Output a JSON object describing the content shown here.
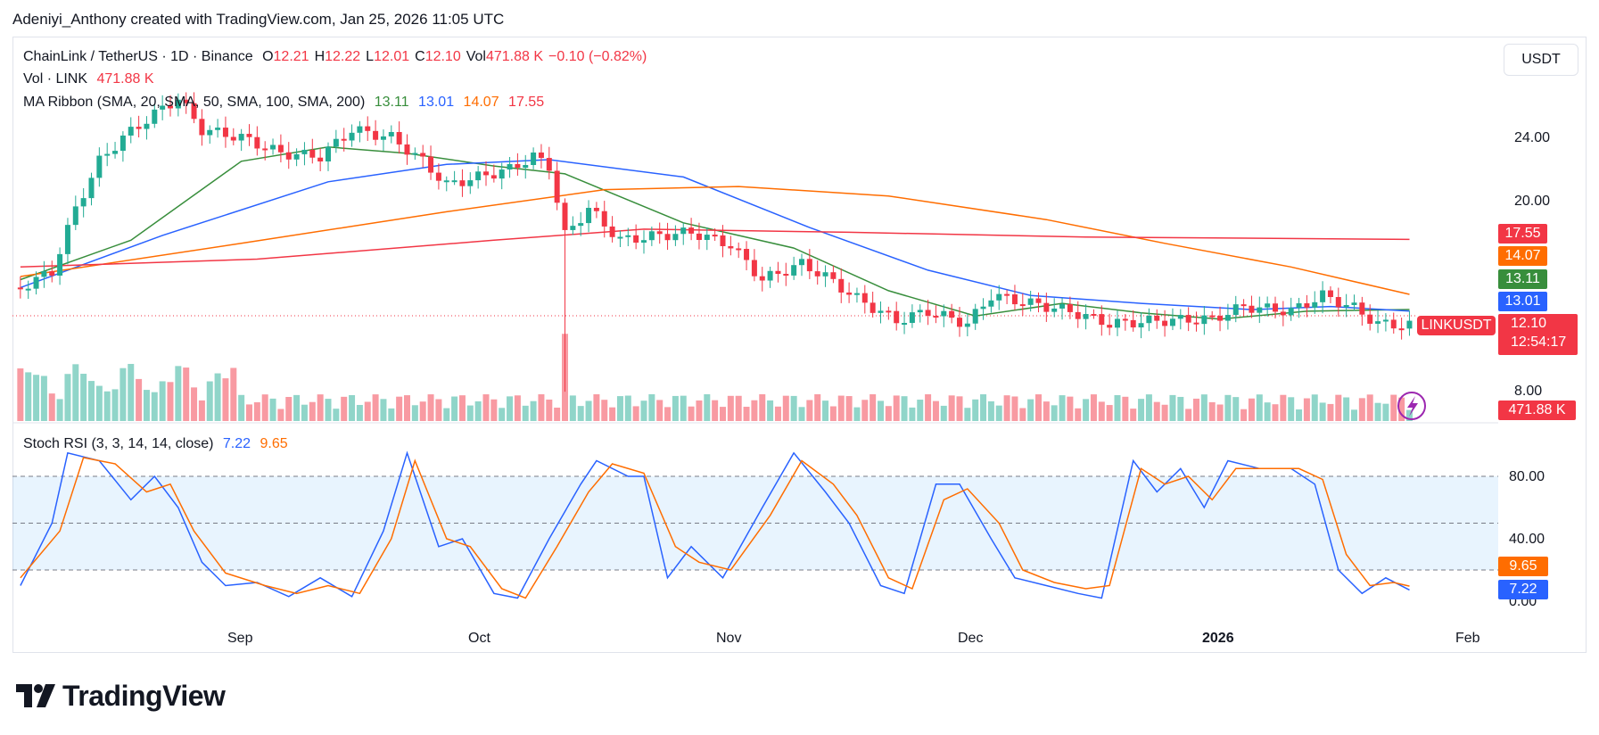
{
  "header": {
    "attribution": "Adeniyi_Anthony created with TradingView.com, Jan 25, 2026 11:05 UTC"
  },
  "legend": {
    "symbol": "ChainLink / TetherUS · 1D · Binance",
    "o_label": "O",
    "o": "12.21",
    "h_label": "H",
    "h": "12.22",
    "l_label": "L",
    "l": "12.01",
    "c_label": "C",
    "c": "12.10",
    "vol_label": "Vol",
    "vol": "471.88 K",
    "change": "−0.10 (−0.82%)",
    "vol_line_label": "Vol · LINK",
    "vol_line_value": "471.88 K",
    "ma_label": "MA Ribbon (SMA, 20, SMA, 50, SMA, 100, SMA, 200)",
    "ma20": "13.11",
    "ma50": "13.01",
    "ma100": "14.07",
    "ma200": "17.55",
    "stoch_label": "Stoch RSI (3, 3, 14, 14, close)",
    "stoch_k": "7.22",
    "stoch_d": "9.65"
  },
  "currency_button": "USDT",
  "price_axis": {
    "ticks": [
      "24.00",
      "20.00",
      "8.00"
    ]
  },
  "rsi_axis": {
    "ticks": [
      "80.00",
      "40.00",
      "0.00"
    ]
  },
  "time_axis": {
    "ticks": [
      "Sep",
      "Oct",
      "Nov",
      "Dec",
      "2026",
      "Feb"
    ]
  },
  "price_labels": {
    "ma200": "17.55",
    "ma100": "14.07",
    "ma20": "13.11",
    "ma50": "13.01",
    "symbol": "LINKUSDT",
    "price": "12.10",
    "countdown": "12:54:17",
    "volume": "471.88 K"
  },
  "rsi_labels": {
    "d": "9.65",
    "k": "7.22"
  },
  "brand": {
    "name": "TradingView"
  },
  "colors": {
    "up": "#22ab94",
    "down": "#f23645",
    "ma20": "#388e3c",
    "ma50": "#2962ff",
    "ma100": "#ff6d00",
    "ma200": "#f23645",
    "stoch_k": "#2962ff",
    "stoch_d": "#ff6d00"
  },
  "chart_data": [
    {
      "type": "candlestick",
      "title": "ChainLink / TetherUS · 1D · Binance",
      "x_ticks": [
        "Sep",
        "Oct",
        "Nov",
        "Dec",
        "2026",
        "Feb"
      ],
      "y_ticks": [
        24.0,
        20.0,
        8.0
      ],
      "close_path": [
        {
          "x": "Aug 2",
          "y": 14.5
        },
        {
          "x": "Aug 6",
          "y": 15.5
        },
        {
          "x": "Aug 9",
          "y": 19.5
        },
        {
          "x": "Aug 12",
          "y": 22.5
        },
        {
          "x": "Aug 15",
          "y": 24.0
        },
        {
          "x": "Aug 19",
          "y": 25.5
        },
        {
          "x": "Aug 22",
          "y": 26.5
        },
        {
          "x": "Aug 25",
          "y": 24.5
        },
        {
          "x": "Aug 30",
          "y": 24.0
        },
        {
          "x": "Sep 4",
          "y": 23.0
        },
        {
          "x": "Sep 9",
          "y": 22.8
        },
        {
          "x": "Sep 13",
          "y": 24.5
        },
        {
          "x": "Sep 18",
          "y": 24.0
        },
        {
          "x": "Sep 22",
          "y": 22.5
        },
        {
          "x": "Sep 25",
          "y": 21.0
        },
        {
          "x": "Sep 29",
          "y": 21.5
        },
        {
          "x": "Oct 3",
          "y": 22.0
        },
        {
          "x": "Oct 6",
          "y": 22.8
        },
        {
          "x": "Oct 8",
          "y": 22.2
        },
        {
          "x": "Oct 10",
          "y": 17.8
        },
        {
          "x": "Oct 13",
          "y": 19.5
        },
        {
          "x": "Oct 17",
          "y": 17.5
        },
        {
          "x": "Oct 22",
          "y": 17.8
        },
        {
          "x": "Oct 26",
          "y": 18.0
        },
        {
          "x": "Oct 31",
          "y": 17.2
        },
        {
          "x": "Nov 4",
          "y": 15.0
        },
        {
          "x": "Nov 9",
          "y": 16.0
        },
        {
          "x": "Nov 12",
          "y": 15.2
        },
        {
          "x": "Nov 16",
          "y": 13.8
        },
        {
          "x": "Nov 21",
          "y": 12.4
        },
        {
          "x": "Nov 25",
          "y": 13.0
        },
        {
          "x": "Nov 30",
          "y": 12.2
        },
        {
          "x": "Dec 3",
          "y": 14.0
        },
        {
          "x": "Dec 8",
          "y": 13.5
        },
        {
          "x": "Dec 13",
          "y": 13.0
        },
        {
          "x": "Dec 18",
          "y": 12.2
        },
        {
          "x": "Dec 24",
          "y": 12.4
        },
        {
          "x": "Dec 31",
          "y": 12.5
        },
        {
          "x": "Jan 4",
          "y": 13.3
        },
        {
          "x": "Jan 10",
          "y": 13.0
        },
        {
          "x": "Jan 14",
          "y": 14.0
        },
        {
          "x": "Jan 18",
          "y": 13.2
        },
        {
          "x": "Jan 21",
          "y": 12.2
        },
        {
          "x": "Jan 25",
          "y": 12.1
        }
      ],
      "series": [
        {
          "name": "SMA 20",
          "last": 13.11,
          "values": [
            {
              "x": "Aug 2",
              "y": 15.0
            },
            {
              "x": "Aug 16",
              "y": 17.5
            },
            {
              "x": "Aug 30",
              "y": 22.5
            },
            {
              "x": "Sep 10",
              "y": 23.4
            },
            {
              "x": "Sep 20",
              "y": 23.0
            },
            {
              "x": "Oct 1",
              "y": 22.2
            },
            {
              "x": "Oct 10",
              "y": 21.7
            },
            {
              "x": "Oct 25",
              "y": 18.6
            },
            {
              "x": "Nov 8",
              "y": 17.0
            },
            {
              "x": "Nov 20",
              "y": 14.3
            },
            {
              "x": "Dec 1",
              "y": 12.7
            },
            {
              "x": "Dec 12",
              "y": 13.5
            },
            {
              "x": "Dec 22",
              "y": 12.9
            },
            {
              "x": "Jan 1",
              "y": 12.5
            },
            {
              "x": "Jan 12",
              "y": 13.0
            },
            {
              "x": "Jan 25",
              "y": 13.11
            }
          ]
        },
        {
          "name": "SMA 50",
          "last": 13.01,
          "values": [
            {
              "x": "Aug 2",
              "y": 14.5
            },
            {
              "x": "Aug 20",
              "y": 17.8
            },
            {
              "x": "Sep 10",
              "y": 21.2
            },
            {
              "x": "Sep 25",
              "y": 22.3
            },
            {
              "x": "Oct 8",
              "y": 22.6
            },
            {
              "x": "Oct 25",
              "y": 21.5
            },
            {
              "x": "Nov 10",
              "y": 18.3
            },
            {
              "x": "Nov 25",
              "y": 15.6
            },
            {
              "x": "Dec 8",
              "y": 14.0
            },
            {
              "x": "Dec 22",
              "y": 13.5
            },
            {
              "x": "Jan 5",
              "y": 13.1
            },
            {
              "x": "Jan 15",
              "y": 13.3
            },
            {
              "x": "Jan 25",
              "y": 13.01
            }
          ]
        },
        {
          "name": "SMA 100",
          "last": 14.07,
          "values": [
            {
              "x": "Aug 2",
              "y": 15.2
            },
            {
              "x": "Aug 30",
              "y": 17.3
            },
            {
              "x": "Sep 25",
              "y": 19.3
            },
            {
              "x": "Oct 15",
              "y": 20.7
            },
            {
              "x": "Nov 1",
              "y": 20.9
            },
            {
              "x": "Nov 20",
              "y": 20.3
            },
            {
              "x": "Dec 10",
              "y": 18.8
            },
            {
              "x": "Dec 25",
              "y": 17.3
            },
            {
              "x": "Jan 10",
              "y": 15.8
            },
            {
              "x": "Jan 25",
              "y": 14.07
            }
          ]
        },
        {
          "name": "SMA 200",
          "last": 17.55,
          "values": [
            {
              "x": "Aug 2",
              "y": 15.8
            },
            {
              "x": "Sep 1",
              "y": 16.3
            },
            {
              "x": "Oct 1",
              "y": 17.5
            },
            {
              "x": "Oct 20",
              "y": 18.2
            },
            {
              "x": "Nov 15",
              "y": 18.0
            },
            {
              "x": "Dec 15",
              "y": 17.7
            },
            {
              "x": "Jan 25",
              "y": 17.55
            }
          ]
        }
      ],
      "last_price": 12.1
    },
    {
      "type": "line",
      "title": "Stoch RSI (3, 3, 14, 14, close)",
      "y_ticks": [
        80.0,
        40.0,
        0.0
      ],
      "ylim": [
        0,
        100
      ],
      "bands": {
        "upper": 80,
        "middle": 50,
        "lower": 20
      },
      "series": [
        {
          "name": "%K",
          "last": 7.22,
          "values": [
            {
              "x": "Aug 2",
              "y": 10
            },
            {
              "x": "Aug 6",
              "y": 50
            },
            {
              "x": "Aug 8",
              "y": 95
            },
            {
              "x": "Aug 12",
              "y": 90
            },
            {
              "x": "Aug 16",
              "y": 65
            },
            {
              "x": "Aug 19",
              "y": 80
            },
            {
              "x": "Aug 22",
              "y": 60
            },
            {
              "x": "Aug 25",
              "y": 25
            },
            {
              "x": "Aug 28",
              "y": 10
            },
            {
              "x": "Sep 1",
              "y": 12
            },
            {
              "x": "Sep 5",
              "y": 3
            },
            {
              "x": "Sep 9",
              "y": 15
            },
            {
              "x": "Sep 13",
              "y": 3
            },
            {
              "x": "Sep 17",
              "y": 45
            },
            {
              "x": "Sep 20",
              "y": 95
            },
            {
              "x": "Sep 24",
              "y": 35
            },
            {
              "x": "Sep 27",
              "y": 40
            },
            {
              "x": "Oct 1",
              "y": 5
            },
            {
              "x": "Oct 4",
              "y": 2
            },
            {
              "x": "Oct 8",
              "y": 40
            },
            {
              "x": "Oct 12",
              "y": 75
            },
            {
              "x": "Oct 14",
              "y": 90
            },
            {
              "x": "Oct 18",
              "y": 80
            },
            {
              "x": "Oct 20",
              "y": 80
            },
            {
              "x": "Oct 23",
              "y": 15
            },
            {
              "x": "Oct 26",
              "y": 35
            },
            {
              "x": "Oct 30",
              "y": 15
            },
            {
              "x": "Nov 4",
              "y": 60
            },
            {
              "x": "Nov 8",
              "y": 95
            },
            {
              "x": "Nov 12",
              "y": 70
            },
            {
              "x": "Nov 15",
              "y": 50
            },
            {
              "x": "Nov 19",
              "y": 10
            },
            {
              "x": "Nov 22",
              "y": 5
            },
            {
              "x": "Nov 26",
              "y": 75
            },
            {
              "x": "Nov 29",
              "y": 75
            },
            {
              "x": "Dec 3",
              "y": 40
            },
            {
              "x": "Dec 6",
              "y": 15
            },
            {
              "x": "Dec 10",
              "y": 10
            },
            {
              "x": "Dec 14",
              "y": 5
            },
            {
              "x": "Dec 17",
              "y": 2
            },
            {
              "x": "Dec 21",
              "y": 90
            },
            {
              "x": "Dec 24",
              "y": 70
            },
            {
              "x": "Dec 27",
              "y": 85
            },
            {
              "x": "Dec 30",
              "y": 60
            },
            {
              "x": "Jan 2",
              "y": 90
            },
            {
              "x": "Jan 6",
              "y": 85
            },
            {
              "x": "Jan 10",
              "y": 85
            },
            {
              "x": "Jan 13",
              "y": 75
            },
            {
              "x": "Jan 16",
              "y": 20
            },
            {
              "x": "Jan 19",
              "y": 5
            },
            {
              "x": "Jan 22",
              "y": 15
            },
            {
              "x": "Jan 25",
              "y": 7.22
            }
          ]
        },
        {
          "name": "%D",
          "last": 9.65,
          "values": [
            {
              "x": "Aug 2",
              "y": 15
            },
            {
              "x": "Aug 7",
              "y": 45
            },
            {
              "x": "Aug 10",
              "y": 92
            },
            {
              "x": "Aug 14",
              "y": 88
            },
            {
              "x": "Aug 18",
              "y": 70
            },
            {
              "x": "Aug 21",
              "y": 75
            },
            {
              "x": "Aug 24",
              "y": 45
            },
            {
              "x": "Aug 28",
              "y": 18
            },
            {
              "x": "Sep 2",
              "y": 10
            },
            {
              "x": "Sep 6",
              "y": 5
            },
            {
              "x": "Sep 10",
              "y": 10
            },
            {
              "x": "Sep 14",
              "y": 5
            },
            {
              "x": "Sep 18",
              "y": 40
            },
            {
              "x": "Sep 21",
              "y": 90
            },
            {
              "x": "Sep 25",
              "y": 40
            },
            {
              "x": "Sep 28",
              "y": 35
            },
            {
              "x": "Oct 2",
              "y": 8
            },
            {
              "x": "Oct 5",
              "y": 2
            },
            {
              "x": "Oct 9",
              "y": 35
            },
            {
              "x": "Oct 13",
              "y": 70
            },
            {
              "x": "Oct 16",
              "y": 88
            },
            {
              "x": "Oct 20",
              "y": 82
            },
            {
              "x": "Oct 24",
              "y": 35
            },
            {
              "x": "Oct 27",
              "y": 25
            },
            {
              "x": "Oct 31",
              "y": 20
            },
            {
              "x": "Nov 5",
              "y": 55
            },
            {
              "x": "Nov 9",
              "y": 90
            },
            {
              "x": "Nov 13",
              "y": 75
            },
            {
              "x": "Nov 16",
              "y": 55
            },
            {
              "x": "Nov 20",
              "y": 15
            },
            {
              "x": "Nov 23",
              "y": 8
            },
            {
              "x": "Nov 27",
              "y": 65
            },
            {
              "x": "Nov 30",
              "y": 72
            },
            {
              "x": "Dec 4",
              "y": 50
            },
            {
              "x": "Dec 7",
              "y": 20
            },
            {
              "x": "Dec 11",
              "y": 12
            },
            {
              "x": "Dec 15",
              "y": 8
            },
            {
              "x": "Dec 18",
              "y": 10
            },
            {
              "x": "Dec 22",
              "y": 85
            },
            {
              "x": "Dec 25",
              "y": 75
            },
            {
              "x": "Dec 28",
              "y": 80
            },
            {
              "x": "Dec 31",
              "y": 65
            },
            {
              "x": "Jan 3",
              "y": 85
            },
            {
              "x": "Jan 7",
              "y": 85
            },
            {
              "x": "Jan 11",
              "y": 85
            },
            {
              "x": "Jan 14",
              "y": 78
            },
            {
              "x": "Jan 17",
              "y": 30
            },
            {
              "x": "Jan 20",
              "y": 10
            },
            {
              "x": "Jan 23",
              "y": 12
            },
            {
              "x": "Jan 25",
              "y": 9.65
            }
          ]
        }
      ]
    }
  ]
}
